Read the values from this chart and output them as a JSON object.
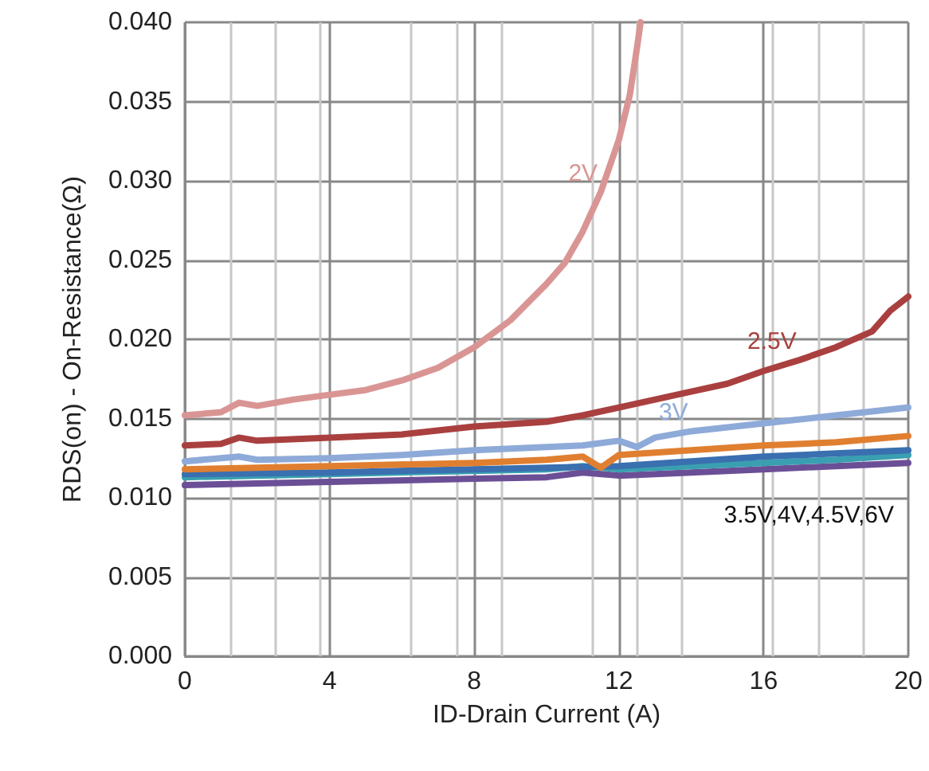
{
  "chart_data": {
    "type": "line",
    "xlabel": "ID-Drain Current (A)",
    "ylabel": "RDS(on) - On-Resistance(Ω)",
    "xlim": [
      0,
      20
    ],
    "xticks": [
      0,
      4,
      8,
      12,
      16,
      20
    ],
    "ylim": [
      0,
      0.04
    ],
    "yticks": [
      {
        "value": 0,
        "label": "0.000"
      },
      {
        "value": 0.005,
        "label": "0.005"
      },
      {
        "value": 0.01,
        "label": "0.010"
      },
      {
        "value": 0.015,
        "label": "0.015"
      },
      {
        "value": 0.02,
        "label": "0.020"
      },
      {
        "value": 0.025,
        "label": "0.025"
      },
      {
        "value": 0.03,
        "label": "0.030"
      },
      {
        "value": 0.035,
        "label": "0.035"
      },
      {
        "value": 0.04,
        "label": "0.040"
      }
    ],
    "grid": true,
    "marker": "none",
    "line_style": "solid",
    "annotations": [
      "3.5V,4V,4.5V,6V"
    ],
    "series": [
      {
        "name": "2V",
        "color": "#d99594",
        "x": [
          0,
          1,
          1.5,
          2,
          3,
          4,
          5,
          6,
          7,
          8,
          9,
          10,
          10.5,
          11,
          11.5,
          12,
          12.3,
          12.5,
          12.6
        ],
        "values": [
          0.0152,
          0.0154,
          0.016,
          0.0158,
          0.0162,
          0.0165,
          0.0168,
          0.0174,
          0.0182,
          0.0195,
          0.0212,
          0.0235,
          0.0248,
          0.0268,
          0.0293,
          0.0326,
          0.0354,
          0.0384,
          0.04
        ]
      },
      {
        "name": "2.5V",
        "color": "#a9403f",
        "x": [
          0,
          1,
          1.5,
          2,
          4,
          6,
          8,
          10,
          11,
          12,
          13,
          14,
          15,
          16,
          17,
          18,
          19,
          19.5,
          20
        ],
        "values": [
          0.0133,
          0.0134,
          0.0138,
          0.0136,
          0.0138,
          0.014,
          0.0145,
          0.0148,
          0.0152,
          0.0157,
          0.0162,
          0.0167,
          0.0172,
          0.018,
          0.0187,
          0.0195,
          0.0205,
          0.0218,
          0.0227
        ]
      },
      {
        "name": "3V",
        "color": "#8eaad8",
        "x": [
          0,
          1.5,
          2,
          4,
          6,
          8,
          10,
          11,
          12,
          12.5,
          13,
          14,
          16,
          18,
          20
        ],
        "values": [
          0.0123,
          0.0126,
          0.0124,
          0.0125,
          0.0127,
          0.013,
          0.0132,
          0.0133,
          0.0136,
          0.0132,
          0.0138,
          0.0142,
          0.0147,
          0.0152,
          0.0157
        ]
      },
      {
        "color": "#e07f30",
        "x": [
          0,
          2,
          4,
          8,
          10,
          11,
          11.5,
          12,
          14,
          16,
          18,
          20
        ],
        "values": [
          0.0118,
          0.0119,
          0.012,
          0.0122,
          0.0124,
          0.0126,
          0.0119,
          0.0127,
          0.013,
          0.0133,
          0.0135,
          0.0139
        ]
      },
      {
        "color": "#3a6fb0",
        "x": [
          0,
          4,
          8,
          10,
          12,
          14,
          16,
          18,
          20
        ],
        "values": [
          0.0115,
          0.0116,
          0.0118,
          0.0119,
          0.012,
          0.0123,
          0.0126,
          0.0128,
          0.013
        ]
      },
      {
        "color": "#3a9fb0",
        "x": [
          0,
          4,
          8,
          10,
          11,
          12,
          14,
          16,
          18,
          20
        ],
        "values": [
          0.0113,
          0.0115,
          0.0117,
          0.0118,
          0.012,
          0.0118,
          0.012,
          0.0122,
          0.0124,
          0.0127
        ]
      },
      {
        "color": "#6b4f96",
        "x": [
          0,
          4,
          8,
          10,
          11,
          12,
          14,
          16,
          18,
          20
        ],
        "values": [
          0.0108,
          0.011,
          0.0112,
          0.0113,
          0.0116,
          0.0114,
          0.0116,
          0.0118,
          0.012,
          0.0122
        ]
      }
    ]
  }
}
